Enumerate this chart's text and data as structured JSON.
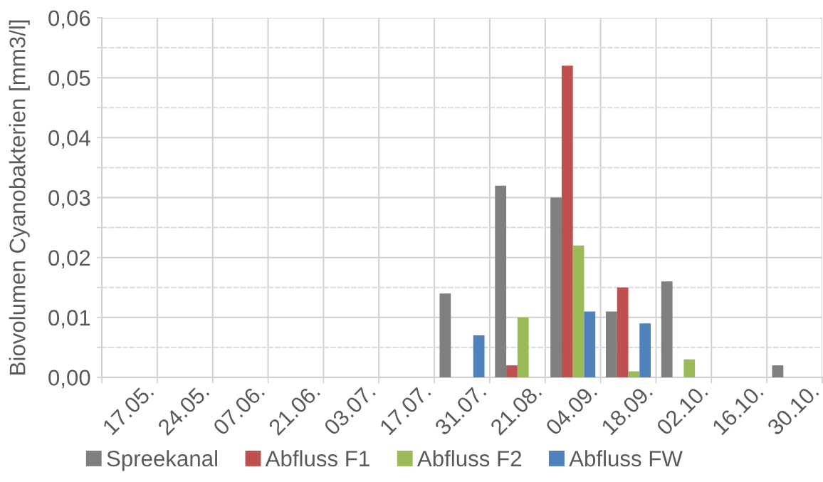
{
  "chart_data": {
    "type": "bar",
    "ylabel": "Biovolumen Cyanobakterien [mm3/l]",
    "categories": [
      "17.05.",
      "24.05.",
      "07.06.",
      "21.06.",
      "03.07.",
      "17.07.",
      "31.07.",
      "21.08.",
      "04.09.",
      "18.09.",
      "02.10.",
      "16.10.",
      "30.10."
    ],
    "series": [
      {
        "name": "Spreekanal",
        "color": "#7f7f7f",
        "values": [
          null,
          null,
          null,
          null,
          null,
          null,
          0.014,
          0.032,
          0.03,
          0.011,
          0.016,
          null,
          0.002
        ]
      },
      {
        "name": "Abfluss F1",
        "color": "#c0504d",
        "values": [
          null,
          null,
          null,
          null,
          null,
          null,
          null,
          0.002,
          0.052,
          0.015,
          null,
          null,
          null
        ]
      },
      {
        "name": "Abfluss F2",
        "color": "#9bbb59",
        "values": [
          null,
          null,
          null,
          null,
          null,
          null,
          null,
          0.01,
          0.022,
          0.001,
          0.003,
          null,
          null
        ]
      },
      {
        "name": "Abfluss FW",
        "color": "#4f81bd",
        "values": [
          null,
          null,
          null,
          null,
          null,
          null,
          0.007,
          null,
          0.011,
          0.009,
          null,
          null,
          null
        ]
      }
    ],
    "ylim": [
      0,
      0.06
    ],
    "yticks": [
      {
        "value": 0,
        "label": "0,00"
      },
      {
        "value": 0.005,
        "label": null
      },
      {
        "value": 0.01,
        "label": "0,01"
      },
      {
        "value": 0.015,
        "label": null
      },
      {
        "value": 0.02,
        "label": "0,02"
      },
      {
        "value": 0.025,
        "label": null
      },
      {
        "value": 0.03,
        "label": "0,03"
      },
      {
        "value": 0.035,
        "label": null
      },
      {
        "value": 0.04,
        "label": "0,04"
      },
      {
        "value": 0.045,
        "label": null
      },
      {
        "value": 0.05,
        "label": "0,05"
      },
      {
        "value": 0.055,
        "label": null
      },
      {
        "value": 0.06,
        "label": "0,06"
      }
    ],
    "grid": true,
    "legend": "bottom"
  }
}
